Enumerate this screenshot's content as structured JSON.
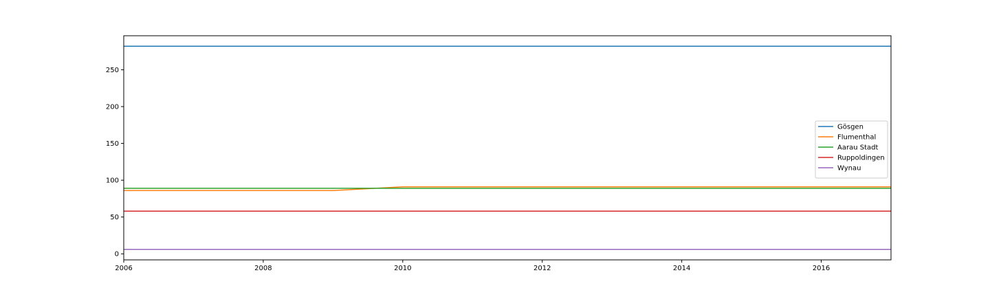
{
  "chart_data": {
    "type": "line",
    "title": "",
    "xlabel": "",
    "ylabel": "",
    "xlim": [
      2006,
      2017
    ],
    "ylim": [
      -8.2,
      296.2
    ],
    "x_ticks": [
      2006,
      2008,
      2010,
      2012,
      2014,
      2016
    ],
    "y_ticks": [
      0,
      50,
      100,
      150,
      200,
      250
    ],
    "grid": false,
    "legend_position": "center-right",
    "x": [
      2006,
      2007,
      2008,
      2009,
      2010,
      2011,
      2012,
      2013,
      2014,
      2015,
      2016,
      2017
    ],
    "series": [
      {
        "name": "Gösgen",
        "color": "#1f77b4",
        "values": [
          282,
          282,
          282,
          282,
          282,
          282,
          282,
          282,
          282,
          282,
          282,
          282
        ]
      },
      {
        "name": "Flumenthal",
        "color": "#ff7f0e",
        "values": [
          86,
          86,
          86,
          86,
          91,
          91,
          91,
          91,
          91,
          91,
          91,
          91
        ]
      },
      {
        "name": "Aarau Stadt",
        "color": "#2ca02c",
        "values": [
          89,
          89,
          89,
          89,
          89,
          89,
          89,
          89,
          89,
          89,
          89,
          89
        ]
      },
      {
        "name": "Ruppoldingen",
        "color": "#d62728",
        "values": [
          58,
          58,
          58,
          58,
          58,
          58,
          58,
          58,
          58,
          58,
          58,
          58
        ]
      },
      {
        "name": "Wynau",
        "color": "#9467bd",
        "values": [
          6,
          6,
          6,
          6,
          6,
          6,
          6,
          6,
          6,
          6,
          6,
          6
        ]
      }
    ]
  }
}
